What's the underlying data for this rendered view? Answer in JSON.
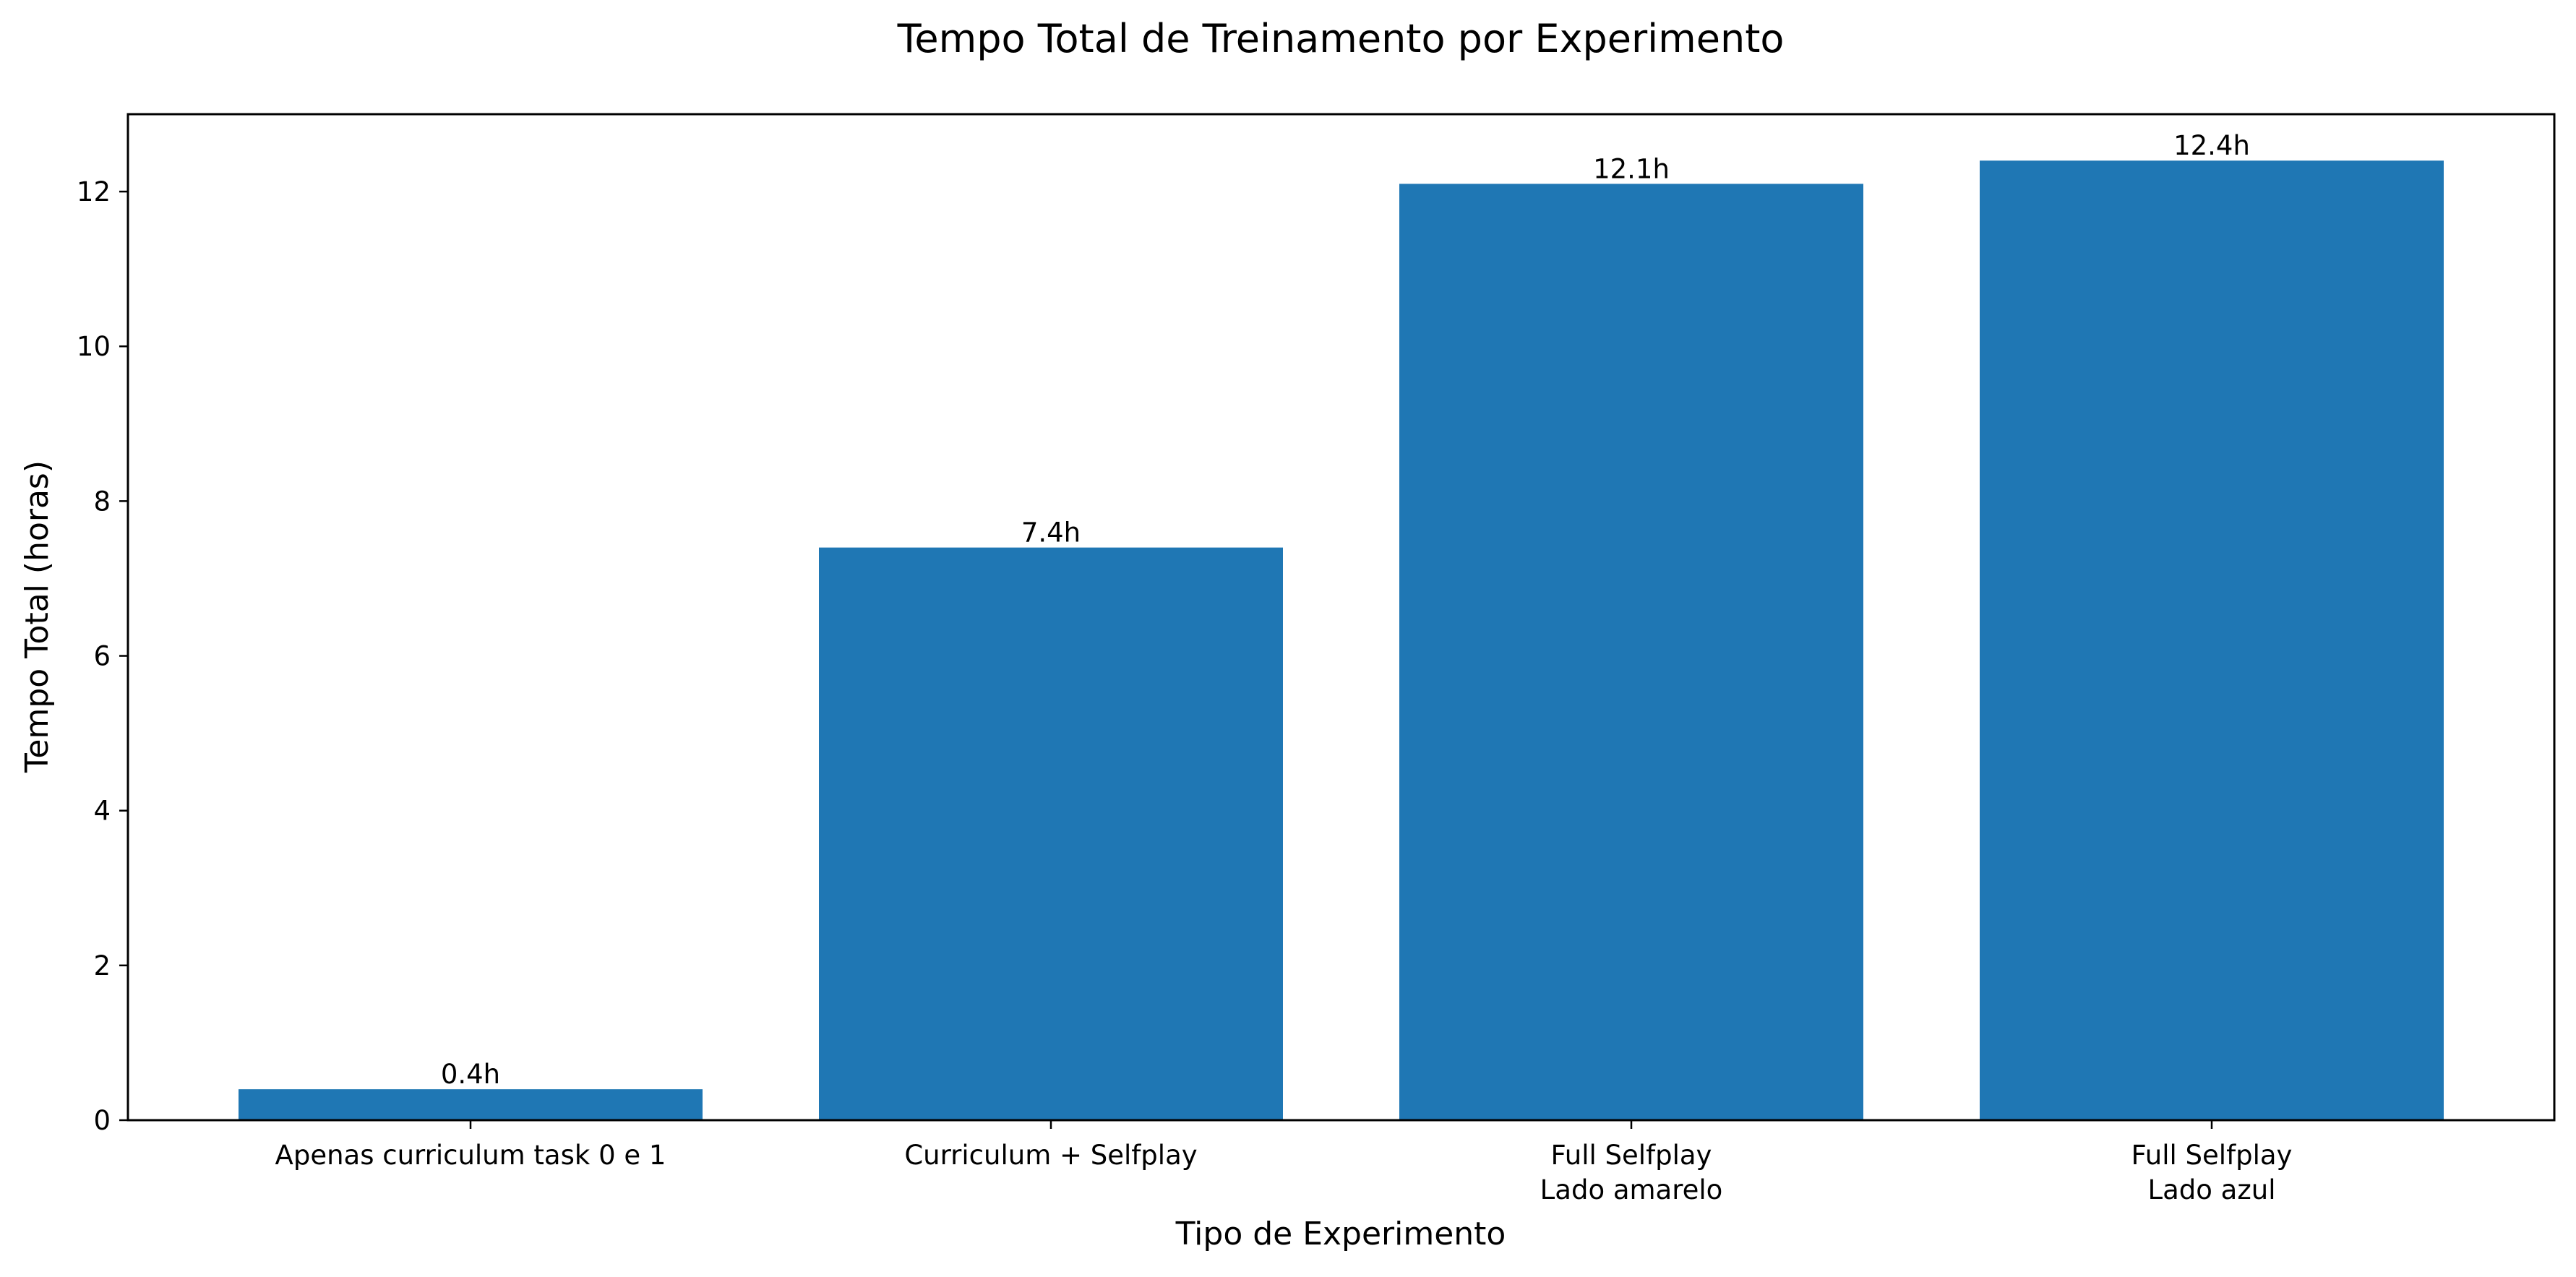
{
  "chart_data": {
    "type": "bar",
    "title": "Tempo Total de Treinamento por Experimento",
    "xlabel": "Tipo de Experimento",
    "ylabel": "Tempo Total (horas)",
    "categories": [
      [
        "Apenas curriculum task 0 e 1"
      ],
      [
        "Curriculum + Selfplay"
      ],
      [
        "Full Selfplay",
        "Lado amarelo"
      ],
      [
        "Full Selfplay",
        "Lado azul"
      ]
    ],
    "values": [
      0.4,
      7.4,
      12.1,
      12.4
    ],
    "value_labels": [
      "0.4h",
      "7.4h",
      "12.1h",
      "12.4h"
    ],
    "yticks": [
      0,
      2,
      4,
      6,
      8,
      10,
      12
    ],
    "ylim": [
      0,
      13.0
    ],
    "grid": false,
    "bar_color": "#1f77b4"
  }
}
